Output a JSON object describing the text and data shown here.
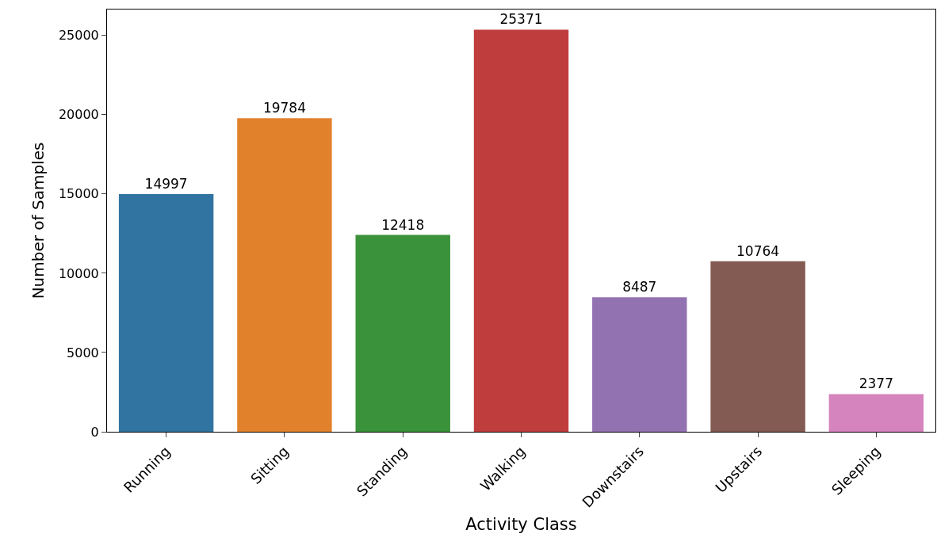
{
  "chart_data": {
    "type": "bar",
    "xlabel": "Activity Class",
    "ylabel": "Number of Samples",
    "categories": [
      "Running",
      "Sitting",
      "Standing",
      "Walking",
      "Downstairs",
      "Upstairs",
      "Sleeping"
    ],
    "values": [
      14997,
      19784,
      12418,
      25371,
      8487,
      10764,
      2377
    ],
    "colors": [
      "#3274a1",
      "#e1812c",
      "#3a923a",
      "#c03d3e",
      "#9372b2",
      "#845b53",
      "#d684bd"
    ],
    "ylim": [
      0,
      26640
    ],
    "yticks": [
      0,
      5000,
      10000,
      15000,
      20000,
      25000
    ],
    "grid": false,
    "data_labels": true
  }
}
